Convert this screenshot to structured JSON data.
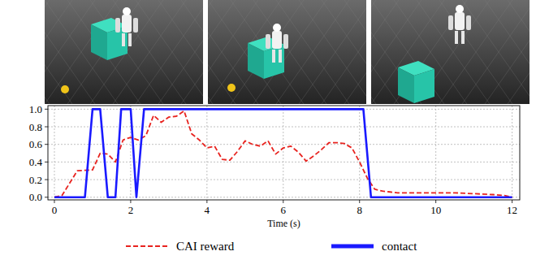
{
  "chart_data": {
    "type": "line",
    "x_label": "Time (s)",
    "xlim": [
      -0.17,
      12.2
    ],
    "ylim": [
      -0.03,
      1.04
    ],
    "xticks": [
      0,
      2,
      4,
      6,
      8,
      10,
      12
    ],
    "yticks": [
      {
        "value": 0,
        "label": "0.0"
      },
      {
        "value": 0.2,
        "label": "0.2"
      },
      {
        "value": 0.4,
        "label": "0.4"
      },
      {
        "value": 0.6,
        "label": "0.6"
      },
      {
        "value": 0.8,
        "label": "0.8"
      },
      {
        "value": 1,
        "label": "1.0"
      }
    ],
    "grid": true,
    "legend": "bottom",
    "series": [
      {
        "name": "CAI reward",
        "color": "#e8231f",
        "line_style": "dashed",
        "x": [
          0,
          0.2,
          0.6,
          1.0,
          1.2,
          1.4,
          1.6,
          1.8,
          2.0,
          2.2,
          2.4,
          2.6,
          2.8,
          3.0,
          3.2,
          3.4,
          3.6,
          3.8,
          4.0,
          4.2,
          4.4,
          4.6,
          4.8,
          5.0,
          5.2,
          5.4,
          5.6,
          5.8,
          6.0,
          6.2,
          6.4,
          6.6,
          6.8,
          7.0,
          7.2,
          7.4,
          7.6,
          7.8,
          8.0,
          8.2,
          8.4,
          8.6,
          8.8,
          9.0,
          9.5,
          10.0,
          10.5,
          11.0,
          11.5,
          11.8,
          12.0
        ],
        "values": [
          0,
          0.02,
          0.3,
          0.31,
          0.5,
          0.49,
          0.4,
          0.65,
          0.68,
          0.65,
          0.7,
          0.93,
          0.85,
          0.91,
          0.92,
          0.98,
          0.72,
          0.65,
          0.56,
          0.58,
          0.43,
          0.42,
          0.52,
          0.64,
          0.6,
          0.58,
          0.64,
          0.49,
          0.56,
          0.58,
          0.51,
          0.41,
          0.47,
          0.54,
          0.62,
          0.62,
          0.61,
          0.56,
          0.4,
          0.22,
          0.09,
          0.07,
          0.06,
          0.05,
          0.05,
          0.05,
          0.05,
          0.04,
          0.03,
          0.02,
          0
        ]
      },
      {
        "name": "contact",
        "color": "#1a1aff",
        "line_style": "solid",
        "x": [
          0,
          0.8,
          1.0,
          1.2,
          1.4,
          1.6,
          1.75,
          2.0,
          2.15,
          2.35,
          8.1,
          8.3,
          12
        ],
        "values": [
          0,
          0,
          1,
          1,
          0,
          0,
          1,
          1,
          0,
          1,
          1,
          0,
          0
        ]
      }
    ]
  }
}
